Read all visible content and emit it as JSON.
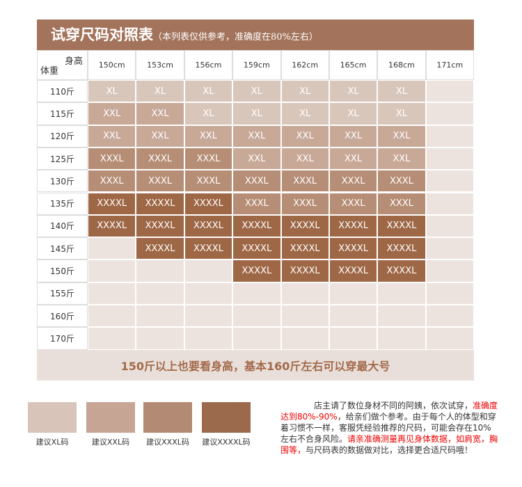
{
  "header": {
    "title": "试穿尺码对照表",
    "subtitle": "（本列表仅供参考，准确度在80%左右）"
  },
  "table": {
    "corner_top": "身高",
    "corner_left": "体重",
    "columns": [
      "150cm",
      "153cm",
      "156cm",
      "159cm",
      "162cm",
      "165cm",
      "168cm",
      "171cm"
    ],
    "row_labels": [
      "110斤",
      "115斤",
      "120斤",
      "125斤",
      "130斤",
      "135斤",
      "140斤",
      "145斤",
      "150斤",
      "155斤",
      "160斤",
      "170斤"
    ],
    "rows": [
      [
        "XL",
        "XL",
        "XL",
        "XL",
        "XL",
        "XL",
        "XL",
        null
      ],
      [
        "XXL",
        "XXL",
        "XL",
        "XL",
        "XL",
        "XL",
        "XL",
        null
      ],
      [
        "XXL",
        "XXL",
        "XXL",
        "XXL",
        "XXL",
        "XXL",
        "XXL",
        null
      ],
      [
        "XXXL",
        "XXXL",
        "XXXL",
        "XXL",
        "XXL",
        "XXL",
        "XXL",
        null
      ],
      [
        "XXXL",
        "XXXL",
        "XXXL",
        "XXXL",
        "XXXL",
        "XXXL",
        "XXXL",
        null
      ],
      [
        "XXXXL",
        "XXXXL",
        "XXXXL",
        "XXXL",
        "XXXL",
        "XXXL",
        "XXXL",
        null
      ],
      [
        "XXXXL",
        "XXXXL",
        "XXXXL",
        "XXXXL",
        "XXXXL",
        "XXXXL",
        "XXXXL",
        null
      ],
      [
        null,
        "XXXXL",
        "XXXXL",
        "XXXXL",
        "XXXXL",
        "XXXXL",
        "XXXXL",
        null
      ],
      [
        null,
        null,
        null,
        "XXXXL",
        "XXXXL",
        "XXXXL",
        "XXXXL",
        null
      ],
      [
        null,
        null,
        null,
        null,
        null,
        null,
        null,
        null
      ],
      [
        null,
        null,
        null,
        null,
        null,
        null,
        null,
        null
      ],
      [
        null,
        null,
        null,
        null,
        null,
        null,
        null,
        null
      ]
    ],
    "cell_colors": {
      "XL": "#d9c6bb",
      "XXL": "#c8a897",
      "XXXL": "#b68d75",
      "XXXXL": "#9e6746"
    },
    "empty_color": "#ede3de",
    "footer": "150斤以上也要看身高，基本160斤左右可以穿最大号"
  },
  "legend": [
    {
      "label": "建议XL码",
      "color": "#d8c4b8"
    },
    {
      "label": "建议XXL码",
      "color": "#c6a595"
    },
    {
      "label": "建议XXXL码",
      "color": "#b38a73"
    },
    {
      "label": "建议XXXXL码",
      "color": "#9b6a4d"
    }
  ],
  "note": [
    {
      "text": "店主请了数位身材不同的阿姨，依次试穿，",
      "red": false
    },
    {
      "text": "准确度达到80%-90%",
      "red": true
    },
    {
      "text": "，给亲们做个参考。由于每个人的体型和穿着习惯不一样，客服凭经验推荐的尺码，可能会存在10%左右不合身风险。",
      "red": false
    },
    {
      "text": "请亲准确测量再见身体数据，如肩宽，胸围等，",
      "red": true
    },
    {
      "text": "与尺码表的数据做对比，选择更合适尺码哦！",
      "red": false
    }
  ]
}
